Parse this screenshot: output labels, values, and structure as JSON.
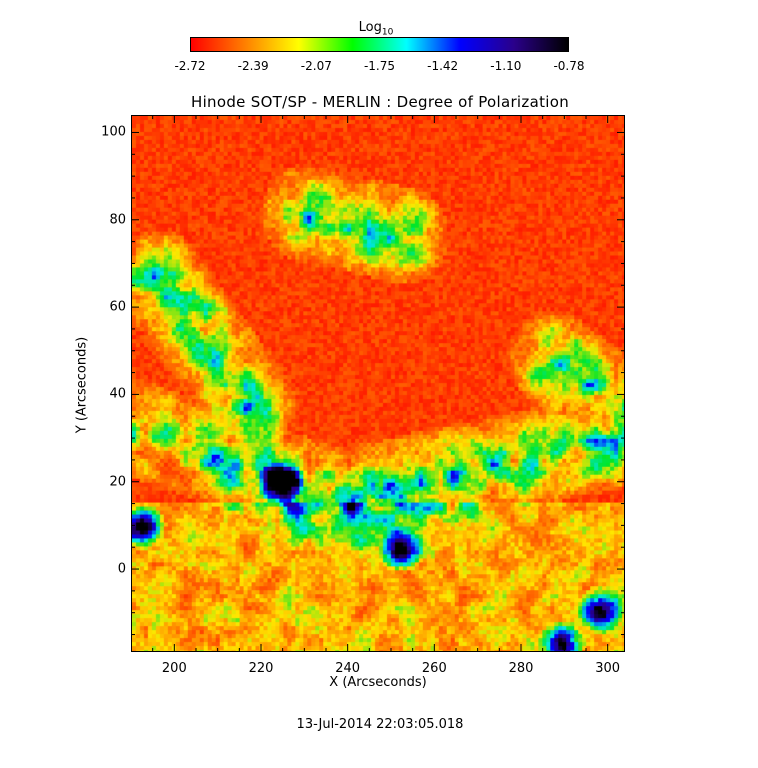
{
  "chart_data": {
    "type": "heatmap",
    "title": "Hinode SOT/SP - MERLIN : Degree of Polarization",
    "xlabel": "X (Arcseconds)",
    "ylabel": "Y (Arcseconds)",
    "xlim": [
      190,
      304
    ],
    "ylim": [
      -19,
      104
    ],
    "x_ticks": [
      200,
      220,
      240,
      260,
      280,
      300
    ],
    "y_ticks": [
      0,
      20,
      40,
      60,
      80,
      100
    ],
    "colorbar": {
      "label_base": "Log",
      "label_sub": "10",
      "ticks": [
        "-2.72",
        "-2.39",
        "-2.07",
        "-1.75",
        "-1.42",
        "-1.10",
        "-0.78"
      ],
      "range": [
        -2.72,
        -0.78
      ],
      "colormap": [
        "#ff0000",
        "#ff7f00",
        "#ffff00",
        "#00ff00",
        "#00ffff",
        "#0000ff",
        "#2a008a",
        "#000000"
      ]
    },
    "features": {
      "low_polarization_color": "#ff0000",
      "high_polarization_color": "#0000d0",
      "strong_patches": [
        {
          "x": 192,
          "y": 10
        },
        {
          "x": 252,
          "y": 5
        },
        {
          "x": 289,
          "y": -17
        },
        {
          "x": 298,
          "y": -9
        },
        {
          "x": 224,
          "y": 20
        }
      ]
    }
  },
  "footer": {
    "timestamp": "13-Jul-2014 22:03:05.018"
  }
}
